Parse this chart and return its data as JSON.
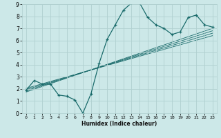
{
  "xlabel": "Humidex (Indice chaleur)",
  "ylabel": "",
  "xlim": [
    -0.5,
    23.5
  ],
  "ylim": [
    0,
    9
  ],
  "xticks": [
    0,
    1,
    2,
    3,
    4,
    5,
    6,
    7,
    8,
    9,
    10,
    11,
    12,
    13,
    14,
    15,
    16,
    17,
    18,
    19,
    20,
    21,
    22,
    23
  ],
  "yticks": [
    0,
    1,
    2,
    3,
    4,
    5,
    6,
    7,
    8,
    9
  ],
  "bg_color": "#cce8e8",
  "grid_color": "#b0d0d0",
  "line_color": "#1a6b6b",
  "main_curve_x": [
    0,
    1,
    2,
    3,
    4,
    5,
    6,
    7,
    8,
    9,
    10,
    11,
    12,
    13,
    14,
    15,
    16,
    17,
    18,
    19,
    20,
    21,
    22,
    23
  ],
  "main_curve_y": [
    1.9,
    2.7,
    2.4,
    2.4,
    1.5,
    1.4,
    1.1,
    0.0,
    1.6,
    4.1,
    6.1,
    7.3,
    8.5,
    9.1,
    9.1,
    7.9,
    7.3,
    7.0,
    6.5,
    6.7,
    7.9,
    8.1,
    7.3,
    7.1
  ],
  "reg_lines": [
    {
      "x": [
        0,
        23
      ],
      "y": [
        2.05,
        6.4
      ]
    },
    {
      "x": [
        0,
        23
      ],
      "y": [
        1.95,
        6.6
      ]
    },
    {
      "x": [
        0,
        23
      ],
      "y": [
        1.85,
        6.8
      ]
    },
    {
      "x": [
        0,
        23
      ],
      "y": [
        1.75,
        7.0
      ]
    }
  ]
}
